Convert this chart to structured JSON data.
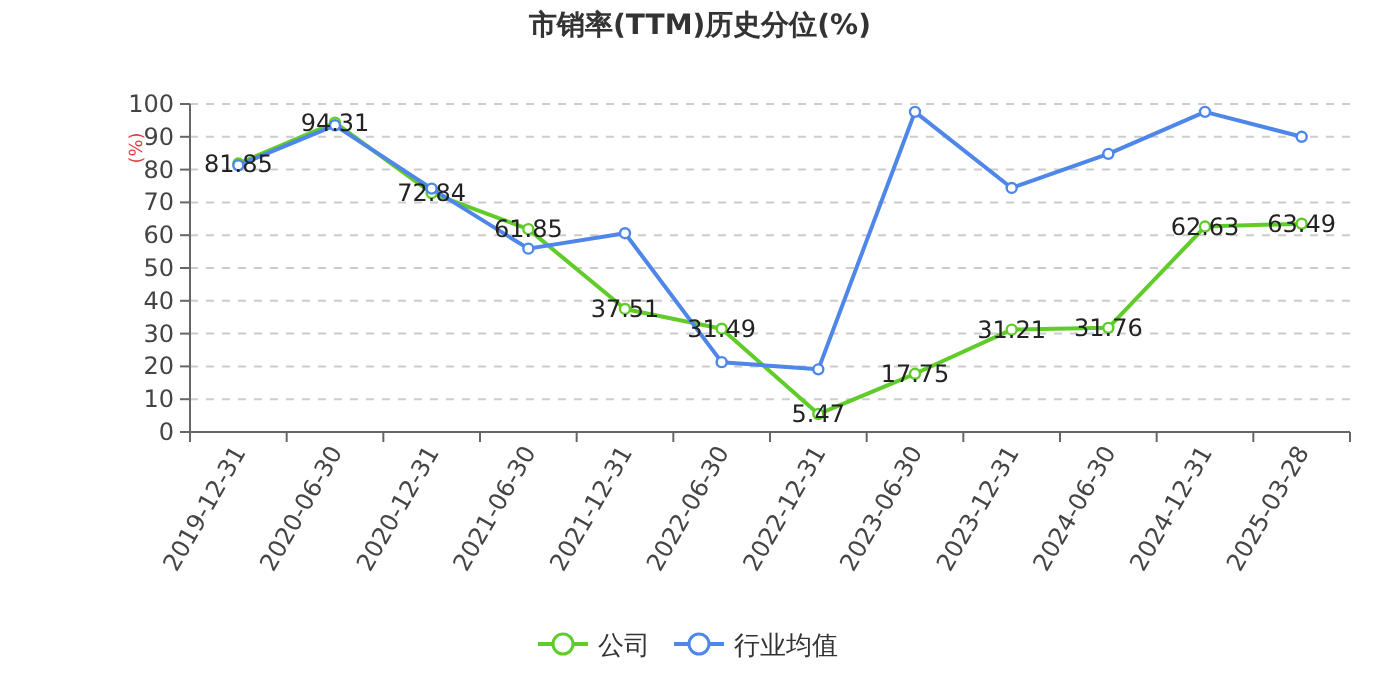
{
  "chart_data": {
    "type": "line",
    "title": "市销率(TTM)历史分位(%)",
    "ylabel": "(%)",
    "categories": [
      "2019-12-31",
      "2020-06-30",
      "2020-12-31",
      "2021-06-30",
      "2021-12-31",
      "2022-06-30",
      "2022-12-31",
      "2023-06-30",
      "2023-12-31",
      "2024-06-30",
      "2024-12-31",
      "2025-03-28"
    ],
    "series": [
      {
        "name": "公司",
        "color": "#5fcc29",
        "values": [
          81.85,
          94.31,
          72.84,
          61.85,
          37.51,
          31.49,
          5.47,
          17.75,
          31.21,
          31.76,
          62.63,
          63.49
        ],
        "data_labels": true
      },
      {
        "name": "行业均值",
        "color": "#4e86ea",
        "values": [
          81.3,
          93.5,
          74.2,
          55.9,
          60.6,
          21.3,
          19.1,
          97.6,
          74.4,
          84.8,
          97.6,
          90.0
        ]
      }
    ],
    "ylim": [
      0,
      100
    ],
    "yticks": [
      0,
      10,
      20,
      30,
      40,
      50,
      60,
      70,
      80,
      90,
      100
    ],
    "grid": "y",
    "legend": "bottom",
    "marker": "circle",
    "line_style": "solid"
  }
}
